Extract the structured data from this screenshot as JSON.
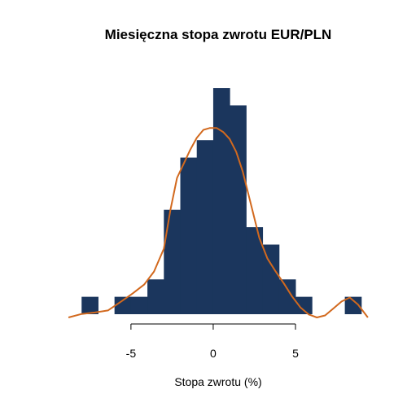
{
  "chart_data": {
    "type": "bar",
    "title": "Miesięczna stopa zwrotu EUR/PLN",
    "xlabel": "Stopa zwrotu (%)",
    "ylabel": "",
    "xlim": [
      -9.2,
      9.8
    ],
    "x_ticks": [
      -5,
      0,
      5
    ],
    "x_tick_labels": [
      "-5",
      "0",
      "5"
    ],
    "y_axis_shown": false,
    "grid": false,
    "bin_width": 1,
    "bins": [
      {
        "start": -8,
        "end": -7,
        "count": 1
      },
      {
        "start": -7,
        "end": -6,
        "count": 0
      },
      {
        "start": -6,
        "end": -5,
        "count": 1
      },
      {
        "start": -5,
        "end": -4,
        "count": 1
      },
      {
        "start": -4,
        "end": -3,
        "count": 2
      },
      {
        "start": -3,
        "end": -2,
        "count": 6
      },
      {
        "start": -2,
        "end": -1,
        "count": 9
      },
      {
        "start": -1,
        "end": 0,
        "count": 10
      },
      {
        "start": 0,
        "end": 1,
        "count": 13
      },
      {
        "start": 1,
        "end": 2,
        "count": 12
      },
      {
        "start": 2,
        "end": 3,
        "count": 5
      },
      {
        "start": 3,
        "end": 4,
        "count": 4
      },
      {
        "start": 4,
        "end": 5,
        "count": 2
      },
      {
        "start": 5,
        "end": 6,
        "count": 1
      },
      {
        "start": 6,
        "end": 7,
        "count": 0
      },
      {
        "start": 7,
        "end": 8,
        "count": 0
      },
      {
        "start": 8,
        "end": 9,
        "count": 1
      }
    ],
    "y_max": 14.5,
    "density_curve": {
      "x": [
        -8.8,
        -8.0,
        -7.2,
        -6.4,
        -5.6,
        -4.9,
        -4.2,
        -3.6,
        -3.0,
        -2.6,
        -2.2,
        -1.8,
        -1.4,
        -1.0,
        -0.6,
        -0.2,
        0.2,
        0.6,
        1.0,
        1.4,
        1.8,
        2.3,
        2.8,
        3.3,
        3.8,
        4.3,
        4.8,
        5.3,
        5.8,
        6.3,
        6.8,
        7.3,
        7.8,
        8.3,
        8.8,
        9.4
      ],
      "y": [
        0.0,
        0.35,
        0.5,
        0.7,
        1.6,
        2.4,
        3.3,
        4.6,
        6.9,
        10.8,
        14.0,
        15.4,
        16.8,
        18.0,
        18.8,
        19.0,
        19.0,
        18.6,
        17.9,
        16.6,
        14.6,
        11.3,
        8.0,
        5.9,
        4.6,
        3.4,
        2.1,
        1.0,
        0.3,
        0.0,
        0.2,
        0.9,
        1.6,
        2.0,
        1.3,
        0.0
      ],
      "y_max": 25.3
    },
    "colors": {
      "bars": "#1b365d",
      "density": "#d2691e"
    }
  }
}
